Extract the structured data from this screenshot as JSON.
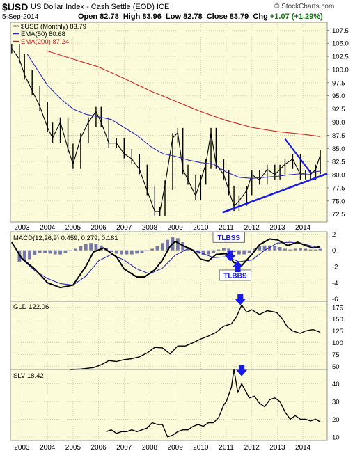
{
  "header": {
    "symbol": "$USD",
    "name": "US Dollar Index - Cash Settle (EOD) ICE",
    "brand": "© StockCharts.com",
    "date": "5-Sep-2014",
    "open_label": "Open",
    "open": "82.78",
    "high_label": "High",
    "high": "83.96",
    "low_label": "Low",
    "low": "82.78",
    "close_label": "Close",
    "close": "83.79",
    "chg_label": "Chg",
    "chg": "+1.07 (+1.29%)"
  },
  "colors": {
    "background": "#fbfbd9",
    "price": "#000000",
    "ema50": "#2b2bb8",
    "ema200": "#cc2222",
    "trendline": "#1a1ae6",
    "histogram": "#7878a8",
    "arrow": "#1a1ae6"
  },
  "chart_data": [
    {
      "type": "line",
      "panel": "price",
      "legend": [
        {
          "label": "$USD (Monthly) 83.79",
          "color": "#000000"
        },
        {
          "label": "EMA(50) 80.68",
          "color": "#2b2bb8"
        },
        {
          "label": "EMA(200) 87.24",
          "color": "#cc2222"
        }
      ],
      "x_ticks": [
        "2003",
        "2004",
        "2005",
        "2006",
        "2007",
        "2008",
        "2009",
        "2010",
        "2011",
        "2012",
        "2013",
        "2014"
      ],
      "y_ticks": [
        "72.5",
        "75.0",
        "77.5",
        "80.0",
        "82.5",
        "85.0",
        "87.5",
        "90.0",
        "92.5",
        "95.0",
        "97.5",
        "100.0",
        "102.5",
        "105.0",
        "107.5"
      ],
      "ylim": [
        71,
        109
      ],
      "xlim": [
        2002.55,
        2014.95
      ],
      "series": [
        {
          "name": "$USD (Monthly)",
          "x": [
            2002.6,
            2002.9,
            2003.1,
            2003.4,
            2003.7,
            2004.0,
            2004.2,
            2004.5,
            2004.8,
            2005.0,
            2005.3,
            2005.6,
            2005.9,
            2006.1,
            2006.4,
            2006.7,
            2007.0,
            2007.3,
            2007.6,
            2007.9,
            2008.2,
            2008.4,
            2008.6,
            2008.9,
            2009.1,
            2009.3,
            2009.5,
            2009.8,
            2010.0,
            2010.2,
            2010.4,
            2010.6,
            2010.9,
            2011.1,
            2011.3,
            2011.5,
            2011.8,
            2012.0,
            2012.3,
            2012.6,
            2012.9,
            2013.1,
            2013.3,
            2013.6,
            2013.9,
            2014.1,
            2014.3,
            2014.5,
            2014.68
          ],
          "values": [
            104,
            102,
            99,
            96,
            93,
            89,
            87,
            90,
            85,
            82,
            87,
            90,
            92,
            90,
            86,
            86,
            84,
            83,
            81,
            77,
            73,
            73,
            78,
            87,
            88,
            81,
            79,
            76,
            79,
            82,
            88,
            82,
            80,
            77,
            74,
            75,
            77,
            80,
            79,
            81,
            80,
            81,
            82,
            83,
            80,
            80,
            80,
            81,
            83.79
          ]
        },
        {
          "name": "EMA(50)",
          "x": [
            2003.2,
            2003.6,
            2004.0,
            2004.5,
            2005.0,
            2005.5,
            2006.0,
            2006.5,
            2007.0,
            2007.5,
            2008.0,
            2008.5,
            2009.0,
            2009.5,
            2010.0,
            2010.5,
            2011.0,
            2011.5,
            2012.0,
            2012.5,
            2013.0,
            2013.5,
            2014.0,
            2014.68
          ],
          "values": [
            103,
            100,
            97,
            94.5,
            92.5,
            91.5,
            91,
            90.5,
            89,
            87.5,
            85.5,
            84,
            83.5,
            82.8,
            82.3,
            82,
            80.5,
            79.5,
            79.3,
            79.5,
            79.7,
            80,
            80.2,
            80.68
          ]
        },
        {
          "name": "EMA(200)",
          "x": [
            2004.0,
            2005.0,
            2006.0,
            2007.0,
            2008.0,
            2009.0,
            2010.0,
            2011.0,
            2012.0,
            2013.0,
            2014.0,
            2014.68
          ],
          "values": [
            103.5,
            102,
            100.5,
            98.3,
            96,
            94,
            92,
            90.3,
            89,
            88.2,
            87.7,
            87.24
          ]
        },
        {
          "name": "trendline-support",
          "x": [
            2010.85,
            2014.95
          ],
          "values": [
            72.8,
            80.2
          ]
        },
        {
          "name": "trendline-resistance",
          "x": [
            2013.3,
            2014.3
          ],
          "values": [
            86.8,
            80.4
          ]
        }
      ]
    },
    {
      "type": "line",
      "panel": "macd",
      "legend": [
        {
          "label": "MACD(12,26,9) 0.459, 0.279, 0.181"
        }
      ],
      "y_ticks": [
        "2",
        "0",
        "-2",
        "-4",
        "-6"
      ],
      "ylim": [
        -6.3,
        2.3
      ],
      "annotations": [
        {
          "label": "TLBSS",
          "x": 2011.1,
          "y": 1.5
        },
        {
          "label": "TLBBS",
          "x": 2011.35,
          "y": -3.2
        }
      ],
      "series": [
        {
          "name": "MACD",
          "x": [
            2002.6,
            2003.0,
            2003.5,
            2004.0,
            2004.5,
            2005.0,
            2005.5,
            2005.8,
            2006.2,
            2006.7,
            2007.0,
            2007.5,
            2007.8,
            2008.2,
            2008.5,
            2008.8,
            2009.0,
            2009.3,
            2009.7,
            2010.0,
            2010.3,
            2010.6,
            2011.0,
            2011.3,
            2011.6,
            2012.0,
            2012.3,
            2012.7,
            2013.0,
            2013.4,
            2013.8,
            2014.1,
            2014.4,
            2014.68
          ],
          "values": [
            1,
            -1,
            -2.3,
            -4,
            -4.6,
            -4.3,
            -2,
            -0.2,
            0.3,
            -0.8,
            -2.3,
            -3.3,
            -3.3,
            -2.4,
            -1.2,
            0.5,
            1.1,
            0.6,
            0,
            -1.1,
            -1.3,
            -0.5,
            -0.4,
            -1.5,
            -1.9,
            -0.5,
            0.7,
            1.4,
            1.3,
            0.6,
            1,
            0.6,
            0.3,
            0.459
          ]
        },
        {
          "name": "Signal",
          "x": [
            2002.9,
            2003.5,
            2004.0,
            2004.5,
            2005.0,
            2005.5,
            2006.0,
            2006.5,
            2007.0,
            2007.5,
            2008.0,
            2008.5,
            2009.0,
            2009.5,
            2010.0,
            2010.5,
            2011.0,
            2011.5,
            2012.0,
            2012.5,
            2013.0,
            2013.5,
            2014.0,
            2014.68
          ],
          "values": [
            -0.8,
            -2.5,
            -3.5,
            -4.1,
            -4.3,
            -3.2,
            -1.3,
            -0.5,
            -1.2,
            -2.3,
            -2.9,
            -2.2,
            -0.6,
            0.2,
            -0.3,
            -0.9,
            -0.8,
            -1.4,
            -1.2,
            0,
            0.9,
            1,
            0.8,
            0.279
          ]
        },
        {
          "name": "Histogram",
          "x": [
            2002.9,
            2003.1,
            2003.3,
            2003.5,
            2003.7,
            2003.9,
            2004.1,
            2004.3,
            2004.5,
            2004.7,
            2004.9,
            2005.1,
            2005.3,
            2005.5,
            2005.7,
            2005.9,
            2006.1,
            2006.3,
            2006.5,
            2006.7,
            2006.9,
            2007.1,
            2007.3,
            2007.5,
            2007.7,
            2007.9,
            2008.1,
            2008.3,
            2008.5,
            2008.7,
            2008.9,
            2009.1,
            2009.3,
            2009.5,
            2009.7,
            2009.9,
            2010.1,
            2010.3,
            2010.5,
            2010.7,
            2010.9,
            2011.1,
            2011.3,
            2011.5,
            2011.7,
            2011.9,
            2012.1,
            2012.3,
            2012.5,
            2012.7,
            2012.9,
            2013.1,
            2013.3,
            2013.5,
            2013.7,
            2013.9,
            2014.1,
            2014.3,
            2014.5,
            2014.68
          ],
          "values": [
            -1.4,
            -1.3,
            -1.1,
            -0.6,
            -0.3,
            -0.3,
            -0.4,
            -0.5,
            -0.5,
            -0.3,
            -0.1,
            0.2,
            0.5,
            0.8,
            0.9,
            0.8,
            0.6,
            0.3,
            -0.2,
            -0.4,
            -0.5,
            -0.5,
            -0.5,
            -0.4,
            -0.3,
            -0.1,
            0.2,
            0.5,
            0.9,
            1.3,
            1.6,
            1.5,
            1.0,
            0.4,
            -0.1,
            -0.4,
            -0.6,
            -0.5,
            -0.3,
            0.1,
            0.3,
            0.2,
            -0.2,
            -0.5,
            -0.5,
            -0.3,
            0.2,
            0.5,
            0.6,
            0.6,
            0.5,
            0.4,
            0.2,
            0.1,
            0.2,
            0.3,
            0.2,
            0.1,
            0.1,
            0.181
          ]
        }
      ]
    },
    {
      "type": "line",
      "panel": "gld",
      "legend": [
        {
          "label": "GLD 122.06"
        }
      ],
      "y_ticks": [
        "175",
        "150",
        "125",
        "100",
        "75",
        "50"
      ],
      "ylim": [
        43,
        188
      ],
      "series": [
        {
          "name": "GLD",
          "x": [
            2004.9,
            2005.3,
            2005.8,
            2006.1,
            2006.4,
            2006.7,
            2007.0,
            2007.3,
            2007.6,
            2007.9,
            2008.2,
            2008.5,
            2008.8,
            2009.1,
            2009.4,
            2009.7,
            2010.0,
            2010.3,
            2010.6,
            2010.9,
            2011.2,
            2011.4,
            2011.6,
            2011.8,
            2012.0,
            2012.3,
            2012.6,
            2012.9,
            2013.0,
            2013.2,
            2013.4,
            2013.6,
            2013.9,
            2014.1,
            2014.4,
            2014.68
          ],
          "values": [
            43,
            44,
            47,
            53,
            62,
            60,
            64,
            66,
            70,
            78,
            90,
            89,
            76,
            93,
            93,
            100,
            108,
            114,
            122,
            135,
            140,
            155,
            180,
            165,
            170,
            160,
            168,
            165,
            163,
            150,
            133,
            125,
            120,
            125,
            128,
            122.06
          ]
        }
      ]
    },
    {
      "type": "line",
      "panel": "slv",
      "legend": [
        {
          "label": "SLV 18.42"
        }
      ],
      "y_ticks": [
        "40",
        "30",
        "20",
        "10"
      ],
      "ylim": [
        8,
        48
      ],
      "series": [
        {
          "name": "SLV",
          "x": [
            2006.3,
            2006.5,
            2006.7,
            2006.9,
            2007.1,
            2007.3,
            2007.5,
            2007.7,
            2007.9,
            2008.1,
            2008.3,
            2008.5,
            2008.7,
            2008.9,
            2009.1,
            2009.3,
            2009.5,
            2009.7,
            2009.9,
            2010.1,
            2010.3,
            2010.5,
            2010.7,
            2010.9,
            2011.0,
            2011.2,
            2011.3,
            2011.45,
            2011.6,
            2011.75,
            2011.9,
            2012.1,
            2012.3,
            2012.5,
            2012.7,
            2012.9,
            2013.1,
            2013.3,
            2013.5,
            2013.7,
            2013.9,
            2014.1,
            2014.3,
            2014.5,
            2014.68
          ],
          "values": [
            13,
            14,
            12,
            13,
            13,
            14,
            13,
            14,
            15,
            18,
            17,
            17,
            10,
            11,
            13,
            14,
            14,
            16,
            17,
            16,
            18,
            18,
            21,
            28,
            30,
            38,
            48,
            35,
            40,
            36,
            32,
            33,
            29,
            27,
            31,
            32,
            30,
            24,
            20,
            22,
            20,
            20,
            19,
            20,
            18.42
          ]
        }
      ]
    }
  ],
  "annotation_arrows": [
    {
      "panel": "macd",
      "x": 2011.15,
      "y": -1.2,
      "dir": "down"
    },
    {
      "panel": "macd",
      "x": 2011.45,
      "y": -2.0,
      "dir": "up"
    },
    {
      "panel": "gld",
      "x": 2011.55,
      "y": 183,
      "dir": "down"
    },
    {
      "panel": "slv",
      "x": 2011.6,
      "y": 45,
      "dir": "down"
    }
  ]
}
